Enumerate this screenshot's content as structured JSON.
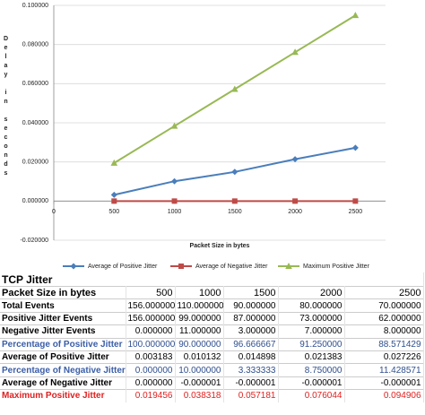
{
  "chart_data": {
    "type": "line",
    "y_label": "Delay in seconds",
    "x_label": "Packet Size in bytes",
    "x": [
      500,
      1000,
      1500,
      2000,
      2500
    ],
    "xlim": [
      0,
      2750
    ],
    "xticks": [
      0,
      500,
      1000,
      1500,
      2000,
      2500
    ],
    "ylim": [
      -0.02,
      0.1
    ],
    "yticks": [
      {
        "value": -0.02,
        "label": "-0.020000"
      },
      {
        "value": 0,
        "label": "0.000000"
      },
      {
        "value": 0.02,
        "label": "0.020000"
      },
      {
        "value": 0.04,
        "label": "0.040000"
      },
      {
        "value": 0.06,
        "label": "0.060000"
      },
      {
        "value": 0.08,
        "label": "0.080000"
      },
      {
        "value": 0.1,
        "label": "0.100000"
      }
    ],
    "grid": true,
    "legend": "bottom",
    "series": [
      {
        "name": "Average of Positive Jitter",
        "color": "#4a7ebb",
        "marker": "diamond",
        "values": [
          0.003183,
          0.010132,
          0.014898,
          0.021383,
          0.027226
        ]
      },
      {
        "name": "Average of Negative Jitter",
        "color": "#be4b48",
        "marker": "square",
        "values": [
          0,
          -1e-06,
          -1e-06,
          -1e-06,
          -1e-06
        ]
      },
      {
        "name": "Maximum Positive Jitter",
        "color": "#98b954",
        "marker": "triangle",
        "values": [
          0.019456,
          0.038318,
          0.057181,
          0.076044,
          0.094906
        ]
      }
    ]
  },
  "table": {
    "title": "TCP Jitter",
    "header": [
      "Packet Size in bytes",
      "500",
      "1000",
      "1500",
      "2000",
      "2500"
    ],
    "rows": [
      [
        "Total Events",
        "156.000000",
        "110.000000",
        "90.000000",
        "80.000000",
        "70.000000"
      ],
      [
        "Positive Jitter Events",
        "156.000000",
        "99.000000",
        "87.000000",
        "73.000000",
        "62.000000"
      ],
      [
        "Negative Jitter Events",
        "0.000000",
        "11.000000",
        "3.000000",
        "7.000000",
        "8.000000"
      ],
      [
        "Percentage of Positive Jitter",
        "100.000000",
        "90.000000",
        "96.666667",
        "91.250000",
        "88.571429"
      ],
      [
        "Average of Positive Jitter",
        "0.003183",
        "0.010132",
        "0.014898",
        "0.021383",
        "0.027226"
      ],
      [
        "Percentage of Negative Jitter",
        "0.000000",
        "10.000000",
        "3.333333",
        "8.750000",
        "11.428571"
      ],
      [
        "Average of Negative Jitter",
        "0.000000",
        "-0.000001",
        "-0.000001",
        "-0.000001",
        "-0.000001"
      ],
      [
        "Maximum Positive Jitter",
        "0.019456",
        "0.038318",
        "0.057181",
        "0.076044",
        "0.094906"
      ]
    ]
  }
}
